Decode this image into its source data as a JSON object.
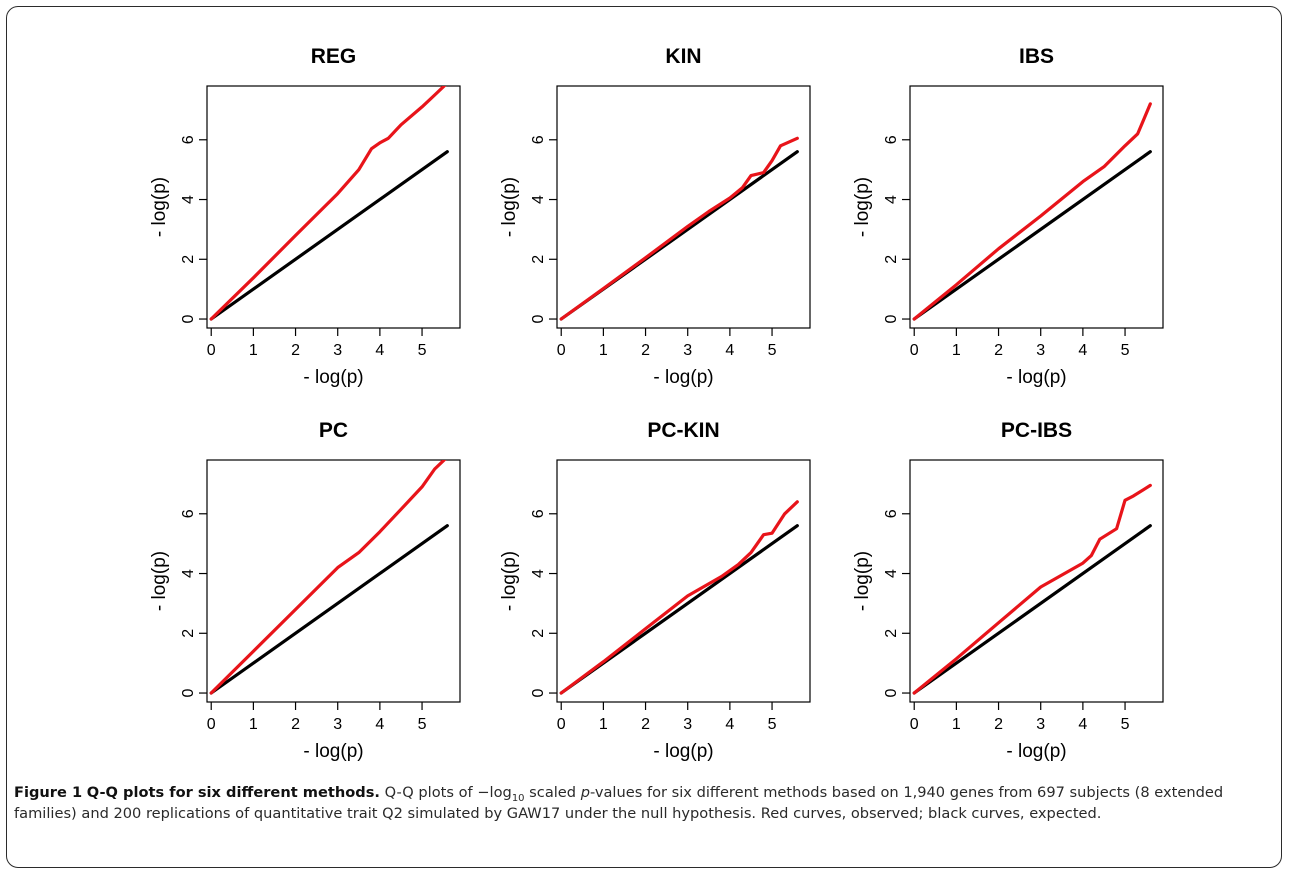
{
  "figure": {
    "caption": {
      "label": "Figure 1",
      "title": "Q-Q plots for six different methods.",
      "text_1": " Q-Q plots of −log",
      "text_sub": "10",
      "text_2": " scaled ",
      "text_p": "p",
      "text_3": "-values for six different methods based on 1,940 genes from 697 subjects (8 extended families) and 200 replications of quantitative trait Q2 simulated by GAW17 under the null hypothesis. Red curves, observed; black curves, expected."
    }
  },
  "chart_data": [
    {
      "type": "line",
      "title": "REG",
      "xlabel": "- log(p)",
      "ylabel": "- log(p)",
      "xlim": [
        -0.1,
        5.9
      ],
      "ylim": [
        -0.3,
        7.8
      ],
      "xticks": [
        "0",
        "1",
        "2",
        "3",
        "4",
        "5"
      ],
      "yticks": [
        "0",
        "2",
        "4",
        "6"
      ],
      "series": [
        {
          "color": "#000000",
          "x": [
            0,
            5.6
          ],
          "y": [
            0,
            5.6
          ]
        },
        {
          "color": "#e8141a",
          "x": [
            0,
            1,
            2,
            3,
            3.5,
            3.8,
            4.0,
            4.2,
            4.5,
            5.0,
            5.3,
            5.6
          ],
          "y": [
            0,
            1.38,
            2.8,
            4.2,
            5.0,
            5.7,
            5.9,
            6.05,
            6.5,
            7.1,
            7.5,
            7.9
          ]
        }
      ]
    },
    {
      "type": "line",
      "title": "KIN",
      "xlabel": "- log(p)",
      "ylabel": "- log(p)",
      "xlim": [
        -0.1,
        5.9
      ],
      "ylim": [
        -0.3,
        7.8
      ],
      "xticks": [
        "0",
        "1",
        "2",
        "3",
        "4",
        "5"
      ],
      "yticks": [
        "0",
        "2",
        "4",
        "6"
      ],
      "series": [
        {
          "color": "#000000",
          "x": [
            0,
            5.6
          ],
          "y": [
            0,
            5.6
          ]
        },
        {
          "color": "#e8141a",
          "x": [
            0,
            1,
            2,
            3,
            3.5,
            4.0,
            4.3,
            4.5,
            4.8,
            5.0,
            5.2,
            5.6
          ],
          "y": [
            0,
            1.02,
            2.05,
            3.1,
            3.6,
            4.05,
            4.4,
            4.8,
            4.9,
            5.3,
            5.8,
            6.05
          ]
        }
      ]
    },
    {
      "type": "line",
      "title": "IBS",
      "xlabel": "- log(p)",
      "ylabel": "- log(p)",
      "xlim": [
        -0.1,
        5.9
      ],
      "ylim": [
        -0.3,
        7.8
      ],
      "xticks": [
        "0",
        "1",
        "2",
        "3",
        "4",
        "5"
      ],
      "yticks": [
        "0",
        "2",
        "4",
        "6"
      ],
      "series": [
        {
          "color": "#000000",
          "x": [
            0,
            5.6
          ],
          "y": [
            0,
            5.6
          ]
        },
        {
          "color": "#e8141a",
          "x": [
            0,
            1,
            2,
            3,
            4,
            4.5,
            5.0,
            5.3,
            5.6
          ],
          "y": [
            0,
            1.15,
            2.35,
            3.45,
            4.6,
            5.1,
            5.8,
            6.2,
            7.2
          ]
        }
      ]
    },
    {
      "type": "line",
      "title": "PC",
      "xlabel": "- log(p)",
      "ylabel": "- log(p)",
      "xlim": [
        -0.1,
        5.9
      ],
      "ylim": [
        -0.3,
        7.8
      ],
      "xticks": [
        "0",
        "1",
        "2",
        "3",
        "4",
        "5"
      ],
      "yticks": [
        "0",
        "2",
        "4",
        "6"
      ],
      "series": [
        {
          "color": "#000000",
          "x": [
            0,
            5.6
          ],
          "y": [
            0,
            5.6
          ]
        },
        {
          "color": "#e8141a",
          "x": [
            0,
            1,
            2,
            3,
            3.5,
            4.0,
            4.5,
            5.0,
            5.3,
            5.6
          ],
          "y": [
            0,
            1.4,
            2.8,
            4.2,
            4.7,
            5.4,
            6.15,
            6.9,
            7.5,
            7.9
          ]
        }
      ]
    },
    {
      "type": "line",
      "title": "PC-KIN",
      "xlabel": "- log(p)",
      "ylabel": "- log(p)",
      "xlim": [
        -0.1,
        5.9
      ],
      "ylim": [
        -0.3,
        7.8
      ],
      "xticks": [
        "0",
        "1",
        "2",
        "3",
        "4",
        "5"
      ],
      "yticks": [
        "0",
        "2",
        "4",
        "6"
      ],
      "series": [
        {
          "color": "#000000",
          "x": [
            0,
            5.6
          ],
          "y": [
            0,
            5.6
          ]
        },
        {
          "color": "#e8141a",
          "x": [
            0,
            1,
            2,
            3,
            3.8,
            4.2,
            4.5,
            4.8,
            5.0,
            5.3,
            5.6
          ],
          "y": [
            0,
            1.05,
            2.15,
            3.25,
            3.9,
            4.3,
            4.7,
            5.3,
            5.35,
            6.0,
            6.4
          ]
        }
      ]
    },
    {
      "type": "line",
      "title": "PC-IBS",
      "xlabel": "- log(p)",
      "ylabel": "- log(p)",
      "xlim": [
        -0.1,
        5.9
      ],
      "ylim": [
        -0.3,
        7.8
      ],
      "xticks": [
        "0",
        "1",
        "2",
        "3",
        "4",
        "5"
      ],
      "yticks": [
        "0",
        "2",
        "4",
        "6"
      ],
      "series": [
        {
          "color": "#000000",
          "x": [
            0,
            5.6
          ],
          "y": [
            0,
            5.6
          ]
        },
        {
          "color": "#e8141a",
          "x": [
            0,
            1,
            2,
            3,
            4,
            4.2,
            4.4,
            4.8,
            5.0,
            5.2,
            5.6
          ],
          "y": [
            0,
            1.15,
            2.35,
            3.55,
            4.35,
            4.6,
            5.15,
            5.5,
            6.45,
            6.6,
            6.95
          ]
        }
      ]
    }
  ]
}
